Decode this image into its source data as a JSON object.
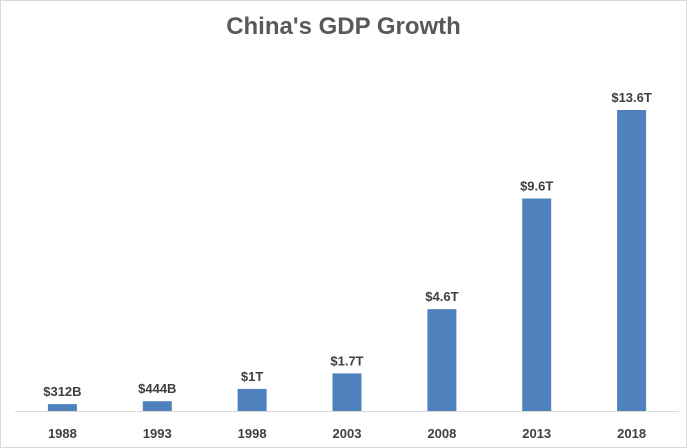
{
  "chart_data": {
    "type": "bar",
    "title": "China's GDP Growth",
    "xlabel": "",
    "ylabel": "",
    "categories": [
      "1988",
      "1993",
      "1998",
      "2003",
      "2008",
      "2013",
      "2018"
    ],
    "values": [
      0.312,
      0.444,
      1.0,
      1.7,
      4.6,
      9.6,
      13.6
    ],
    "data_labels": [
      "$312B",
      "$444B",
      "$1T",
      "$1.7T",
      "$4.6T",
      "$9.6T",
      "$13.6T"
    ],
    "unit": "trillion USD",
    "ylim": [
      0,
      14
    ],
    "grid": false,
    "legend": "none",
    "bar_color": "#4f81bd",
    "axis_color": "#d9d9d9"
  }
}
